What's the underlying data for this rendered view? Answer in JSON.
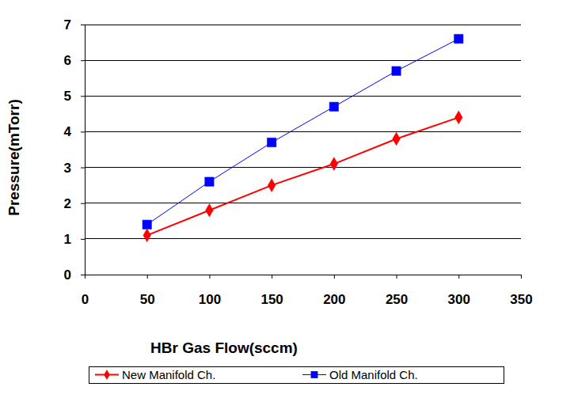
{
  "chart_data": {
    "type": "line",
    "x_label": "HBr Gas Flow(sccm)",
    "y_label": "Pressure(mTorr)",
    "x": [
      50,
      100,
      150,
      200,
      250,
      300
    ],
    "series": [
      {
        "name": "New Manifold Ch.",
        "color": "#ff0000",
        "marker": "diamond",
        "line_style": "solid",
        "values": [
          1.1,
          1.8,
          2.5,
          3.1,
          3.8,
          4.4
        ]
      },
      {
        "name": "Old Manifold Ch.",
        "color": "#0000ff",
        "marker": "square",
        "line_style": "solid",
        "values": [
          1.4,
          2.6,
          3.7,
          4.7,
          5.7,
          6.6
        ]
      }
    ],
    "xlim": [
      0,
      350
    ],
    "xticks": [
      0,
      50,
      100,
      150,
      200,
      250,
      300,
      350
    ],
    "ylim": [
      0,
      7
    ],
    "yticks": [
      0,
      1,
      2,
      3,
      4,
      5,
      6,
      7
    ],
    "grid": true,
    "legend": "bottom"
  }
}
